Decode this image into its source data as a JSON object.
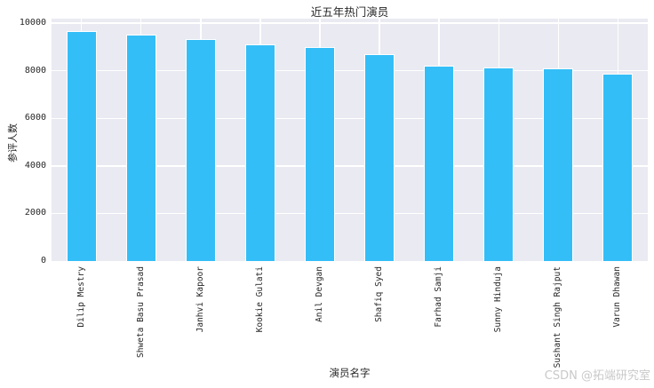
{
  "title": "近五年热门演员",
  "watermark": "CSDN @拓端研究室",
  "chart_data": {
    "type": "bar",
    "title": "近五年热门演员",
    "xlabel": "演员名字",
    "ylabel": "参评人数",
    "categories": [
      "Dilip Mestry",
      "Shweta Basu Prasad",
      "Janhvi Kapoor",
      "Kookie Gulati",
      "Anil Devgan",
      "Shafiq Syed",
      "Farhad Samji",
      "Sunny Hinduja",
      "Sushant Singh Rajput",
      "Varun Dhawan"
    ],
    "values": [
      9650,
      9510,
      9350,
      9110,
      9000,
      8710,
      8210,
      8130,
      8110,
      7860
    ],
    "yticks": [
      0,
      2000,
      4000,
      6000,
      8000,
      10000
    ],
    "ylim": [
      0,
      10190
    ],
    "grid": true,
    "legend": "none",
    "bar_color": "#34bef7",
    "bar_edge_color": "#ffffff",
    "plot_bg_color": "#eaeaf2",
    "grid_color": "#ffffff",
    "text_color": "#262626",
    "watermark_color": "#c9c9c9"
  }
}
